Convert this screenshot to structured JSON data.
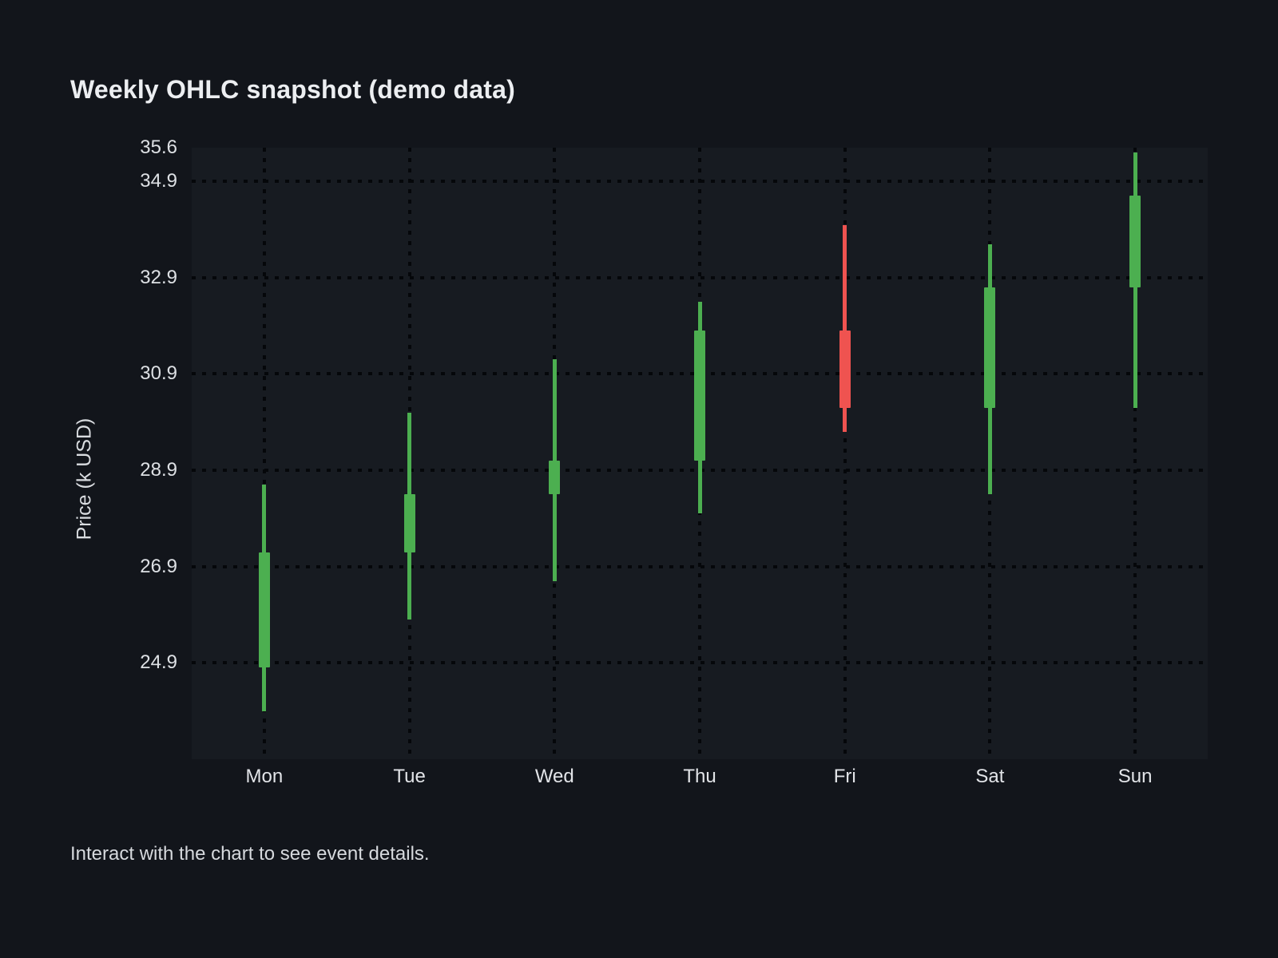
{
  "title": "Weekly OHLC snapshot (demo data)",
  "footer_note": "Interact with the chart to see event details.",
  "colors": {
    "background": "#12151b",
    "plot_background": "#171b21",
    "grid_dots": "#05070a",
    "text": "#e2e4e8",
    "up_candle": "#4caf50",
    "down_candle": "#ef5350"
  },
  "chart_data": {
    "type": "candlestick",
    "title": "Weekly OHLC snapshot (demo data)",
    "xlabel": "",
    "ylabel": "Price (k USD)",
    "categories": [
      "Mon",
      "Tue",
      "Wed",
      "Thu",
      "Fri",
      "Sat",
      "Sun"
    ],
    "series": [
      {
        "name": "OHLC",
        "points": [
          {
            "day": "Mon",
            "open": 24.8,
            "high": 28.6,
            "low": 23.9,
            "close": 27.2,
            "direction": "up"
          },
          {
            "day": "Tue",
            "open": 27.2,
            "high": 30.1,
            "low": 25.8,
            "close": 28.4,
            "direction": "up"
          },
          {
            "day": "Wed",
            "open": 28.4,
            "high": 31.2,
            "low": 26.6,
            "close": 29.1,
            "direction": "up"
          },
          {
            "day": "Thu",
            "open": 29.1,
            "high": 32.4,
            "low": 28.0,
            "close": 31.8,
            "direction": "up"
          },
          {
            "day": "Fri",
            "open": 31.8,
            "high": 34.0,
            "low": 29.7,
            "close": 30.2,
            "direction": "down"
          },
          {
            "day": "Sat",
            "open": 30.2,
            "high": 33.6,
            "low": 28.4,
            "close": 32.7,
            "direction": "up"
          },
          {
            "day": "Sun",
            "open": 32.7,
            "high": 35.5,
            "low": 30.2,
            "close": 34.6,
            "direction": "up"
          }
        ]
      }
    ],
    "yticks": [
      24.9,
      26.9,
      28.9,
      30.9,
      32.9,
      34.9,
      35.6
    ],
    "ylim": [
      22.9,
      35.6
    ],
    "grid": "dotted",
    "legend": false
  }
}
